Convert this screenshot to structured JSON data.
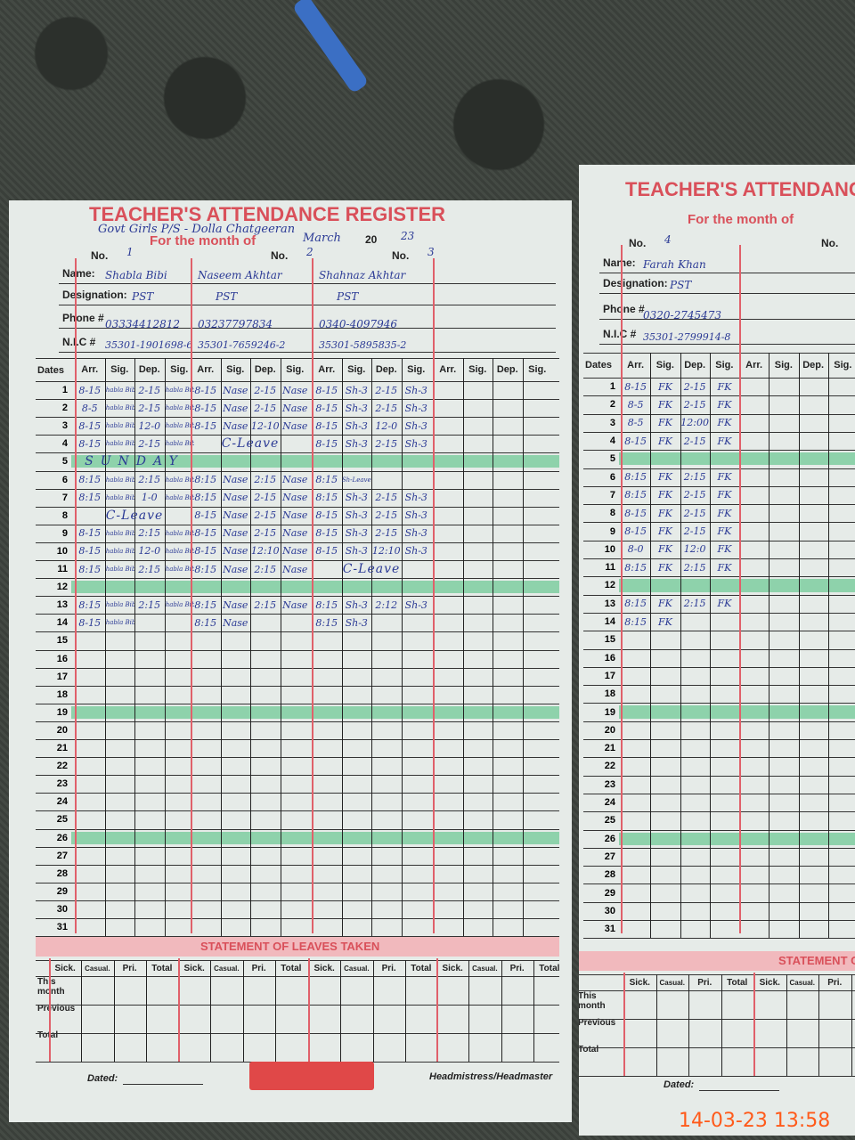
{
  "title": "TEACHER'S ATTENDANCE REGISTER",
  "school_note": "Govt Girls P/S - Dolla Chatgeeran",
  "month_label": "For the month of",
  "month": "March",
  "year_prefix": "20",
  "year": "23",
  "labels": {
    "no": "No.",
    "name": "Name:",
    "designation": "Designation:",
    "phone": "Phone #",
    "nic": "N.I.C #",
    "dates": "Dates"
  },
  "column_headers": [
    "Arr.",
    "Sig.",
    "Dep.",
    "Sig."
  ],
  "holidays": [
    5,
    12,
    19,
    26
  ],
  "left_page": {
    "teachers": [
      {
        "no": "1",
        "name": "Shabla Bibi",
        "designation": "PST",
        "phone": "03334412812",
        "nic": "35301-1901698-6",
        "records": {
          "1": [
            "8-15",
            "Shabla Bibi",
            "2-15",
            "Shabla Bibi"
          ],
          "2": [
            "8-5",
            "Shabla Bibi",
            "2-15",
            "Shabla Bibi"
          ],
          "3": [
            "8-15",
            "Shabla Bibi",
            "12-0",
            "Shabla Bibi"
          ],
          "4": [
            "8-15",
            "Shabla Bibi",
            "2-15",
            "Shabla Bibi"
          ],
          "5": "SUNDAY",
          "6": [
            "8:15",
            "Shabla Bibi",
            "2:15",
            "Shabla Bibi"
          ],
          "7": [
            "8:15",
            "Shabla Bibi",
            "1-0",
            "Shabla Bibi"
          ],
          "8": "C-Leave",
          "9": [
            "8-15",
            "Shabla Bibi",
            "2:15",
            "Shabla Bibi"
          ],
          "10": [
            "8-15",
            "Shabla Bibi",
            "12-0",
            "Shabla Bibi"
          ],
          "11": [
            "8:15",
            "Shabla Bibi",
            "2:15",
            "Shabla Bibi"
          ],
          "13": [
            "8:15",
            "Shabla Bibi",
            "2:15",
            "Shabla Bibi"
          ],
          "14": [
            "8-15",
            "Shabla Bibi",
            "",
            ""
          ]
        }
      },
      {
        "no": "2",
        "name": "Naseem Akhtar",
        "designation": "PST",
        "phone": "03237797834",
        "nic": "35301-7659246-2",
        "records": {
          "1": [
            "8-15",
            "Nase",
            "2-15",
            "Nase"
          ],
          "2": [
            "8-15",
            "Nase",
            "2-15",
            "Nase"
          ],
          "3": [
            "8-15",
            "Nase",
            "12-10",
            "Nase"
          ],
          "4": "C-Leave",
          "6": [
            "8:15",
            "Nase",
            "2:15",
            "Nase"
          ],
          "7": [
            "8:15",
            "Nase",
            "2-15",
            "Nase"
          ],
          "8": [
            "8-15",
            "Nase",
            "2-15",
            "Nase"
          ],
          "9": [
            "8-15",
            "Nase",
            "2-15",
            "Nase"
          ],
          "10": [
            "8-15",
            "Nase",
            "12:10",
            "Nase"
          ],
          "11": [
            "8:15",
            "Nase",
            "2:15",
            "Nase"
          ],
          "13": [
            "8:15",
            "Nase",
            "2:15",
            "Nase"
          ],
          "14": [
            "8:15",
            "Nase",
            "",
            ""
          ]
        }
      },
      {
        "no": "3",
        "name": "Shahnaz Akhtar",
        "designation": "PST",
        "phone": "0340-4097946",
        "nic": "35301-5895835-2",
        "records": {
          "1": [
            "8-15",
            "Sh-3",
            "2-15",
            "Sh-3"
          ],
          "2": [
            "8-15",
            "Sh-3",
            "2-15",
            "Sh-3"
          ],
          "3": [
            "8-15",
            "Sh-3",
            "12-0",
            "Sh-3"
          ],
          "4": [
            "8-15",
            "Sh-3",
            "2-15",
            "Sh-3"
          ],
          "6": [
            "8:15",
            "Sh-Leave",
            "",
            ""
          ],
          "7": [
            "8:15",
            "Sh-3",
            "2-15",
            "Sh-3"
          ],
          "8": [
            "8-15",
            "Sh-3",
            "2-15",
            "Sh-3"
          ],
          "9": [
            "8-15",
            "Sh-3",
            "2-15",
            "Sh-3"
          ],
          "10": [
            "8-15",
            "Sh-3",
            "12:10",
            "Sh-3"
          ],
          "11": "C-Leave",
          "13": [
            "8:15",
            "Sh-3",
            "2:12",
            "Sh-3"
          ],
          "14": [
            "8:15",
            "Sh-3",
            "",
            ""
          ]
        }
      },
      {
        "no": "",
        "name": "",
        "designation": "",
        "phone": "",
        "nic": "",
        "records": {}
      }
    ]
  },
  "right_page": {
    "teachers": [
      {
        "no": "4",
        "name": "Farah Khan",
        "designation": "PST",
        "phone": "0320-2745473",
        "nic": "35301-2799914-8",
        "records": {
          "1": [
            "8-15",
            "FK",
            "2-15",
            "FK"
          ],
          "2": [
            "8-5",
            "FK",
            "2-15",
            "FK"
          ],
          "3": [
            "8-5",
            "FK",
            "12:00",
            "FK"
          ],
          "4": [
            "8-15",
            "FK",
            "2-15",
            "FK"
          ],
          "6": [
            "8:15",
            "FK",
            "2:15",
            "FK"
          ],
          "7": [
            "8:15",
            "FK",
            "2-15",
            "FK"
          ],
          "8": [
            "8-15",
            "FK",
            "2-15",
            "FK"
          ],
          "9": [
            "8-15",
            "FK",
            "2-15",
            "FK"
          ],
          "10": [
            "8-0",
            "FK",
            "12:0",
            "FK"
          ],
          "11": [
            "8:15",
            "FK",
            "2:15",
            "FK"
          ],
          "13": [
            "8:15",
            "FK",
            "2:15",
            "FK"
          ],
          "14": [
            "8:15",
            "FK",
            "",
            ""
          ]
        }
      },
      {
        "no": "",
        "name": "",
        "designation": "",
        "phone": "",
        "nic": "",
        "records": {}
      }
    ]
  },
  "statement": {
    "title": "STATEMENT OF LEAVES TAKEN",
    "columns": [
      "Sick.",
      "Casual.",
      "Pri.",
      "Total"
    ],
    "rows": [
      "This month",
      "Previous",
      "Total"
    ]
  },
  "footer": {
    "dated": "Dated:",
    "signatory": "Headmistress/Headmaster"
  },
  "timestamp": "14-03-23  13:58",
  "colors": {
    "print_red": "#d9505a",
    "ink_blue": "#2b3a95",
    "highlight_green": "#46be78",
    "timestamp": "#ff5a1a"
  }
}
